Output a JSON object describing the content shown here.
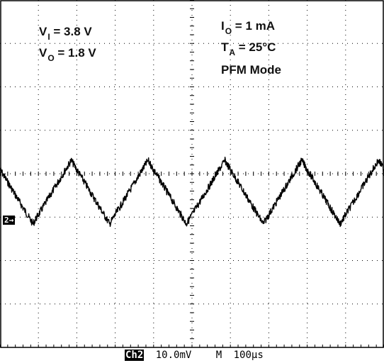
{
  "chart_data": {
    "type": "line",
    "grid": true,
    "graticule": {
      "h_divisions": 10,
      "v_divisions": 8
    },
    "ylim": [
      -4,
      4
    ],
    "xlim": [
      -5,
      5
    ],
    "series": [
      {
        "trace": "Ch2",
        "x": [
          -5.0,
          -4.15,
          -4.14,
          -3.15,
          -3.14,
          -2.15,
          -2.14,
          -1.15,
          -1.14,
          -0.15,
          -0.14,
          0.85,
          0.86,
          1.85,
          1.86,
          2.85,
          2.86,
          3.85,
          3.86,
          4.85,
          4.86,
          5.0
        ],
        "y": [
          0.1,
          -1.15,
          -1.15,
          0.3,
          0.3,
          -1.15,
          -1.15,
          0.3,
          0.3,
          -1.15,
          -1.15,
          0.3,
          0.3,
          -1.15,
          -1.15,
          0.3,
          0.3,
          -1.15,
          -1.15,
          0.3,
          0.3,
          0.1
        ],
        "color": "#000000"
      }
    ],
    "annotations": {
      "vi": {
        "main": "V",
        "sub": "I",
        "rest": " = 3.8 V"
      },
      "vo": {
        "main": "V",
        "sub": "O",
        "rest": " = 1.8 V"
      },
      "io": {
        "main": "I",
        "sub": "O",
        "rest": " = 1 mA"
      },
      "ta": {
        "main": "T",
        "sub": "A",
        "rest": " = 25°C"
      },
      "mode": "PFM Mode"
    },
    "channel_marker": "2→",
    "status": {
      "channel": "Ch2",
      "scale": "10.0mV",
      "timebase_label": "M",
      "timebase": "100µs"
    }
  }
}
